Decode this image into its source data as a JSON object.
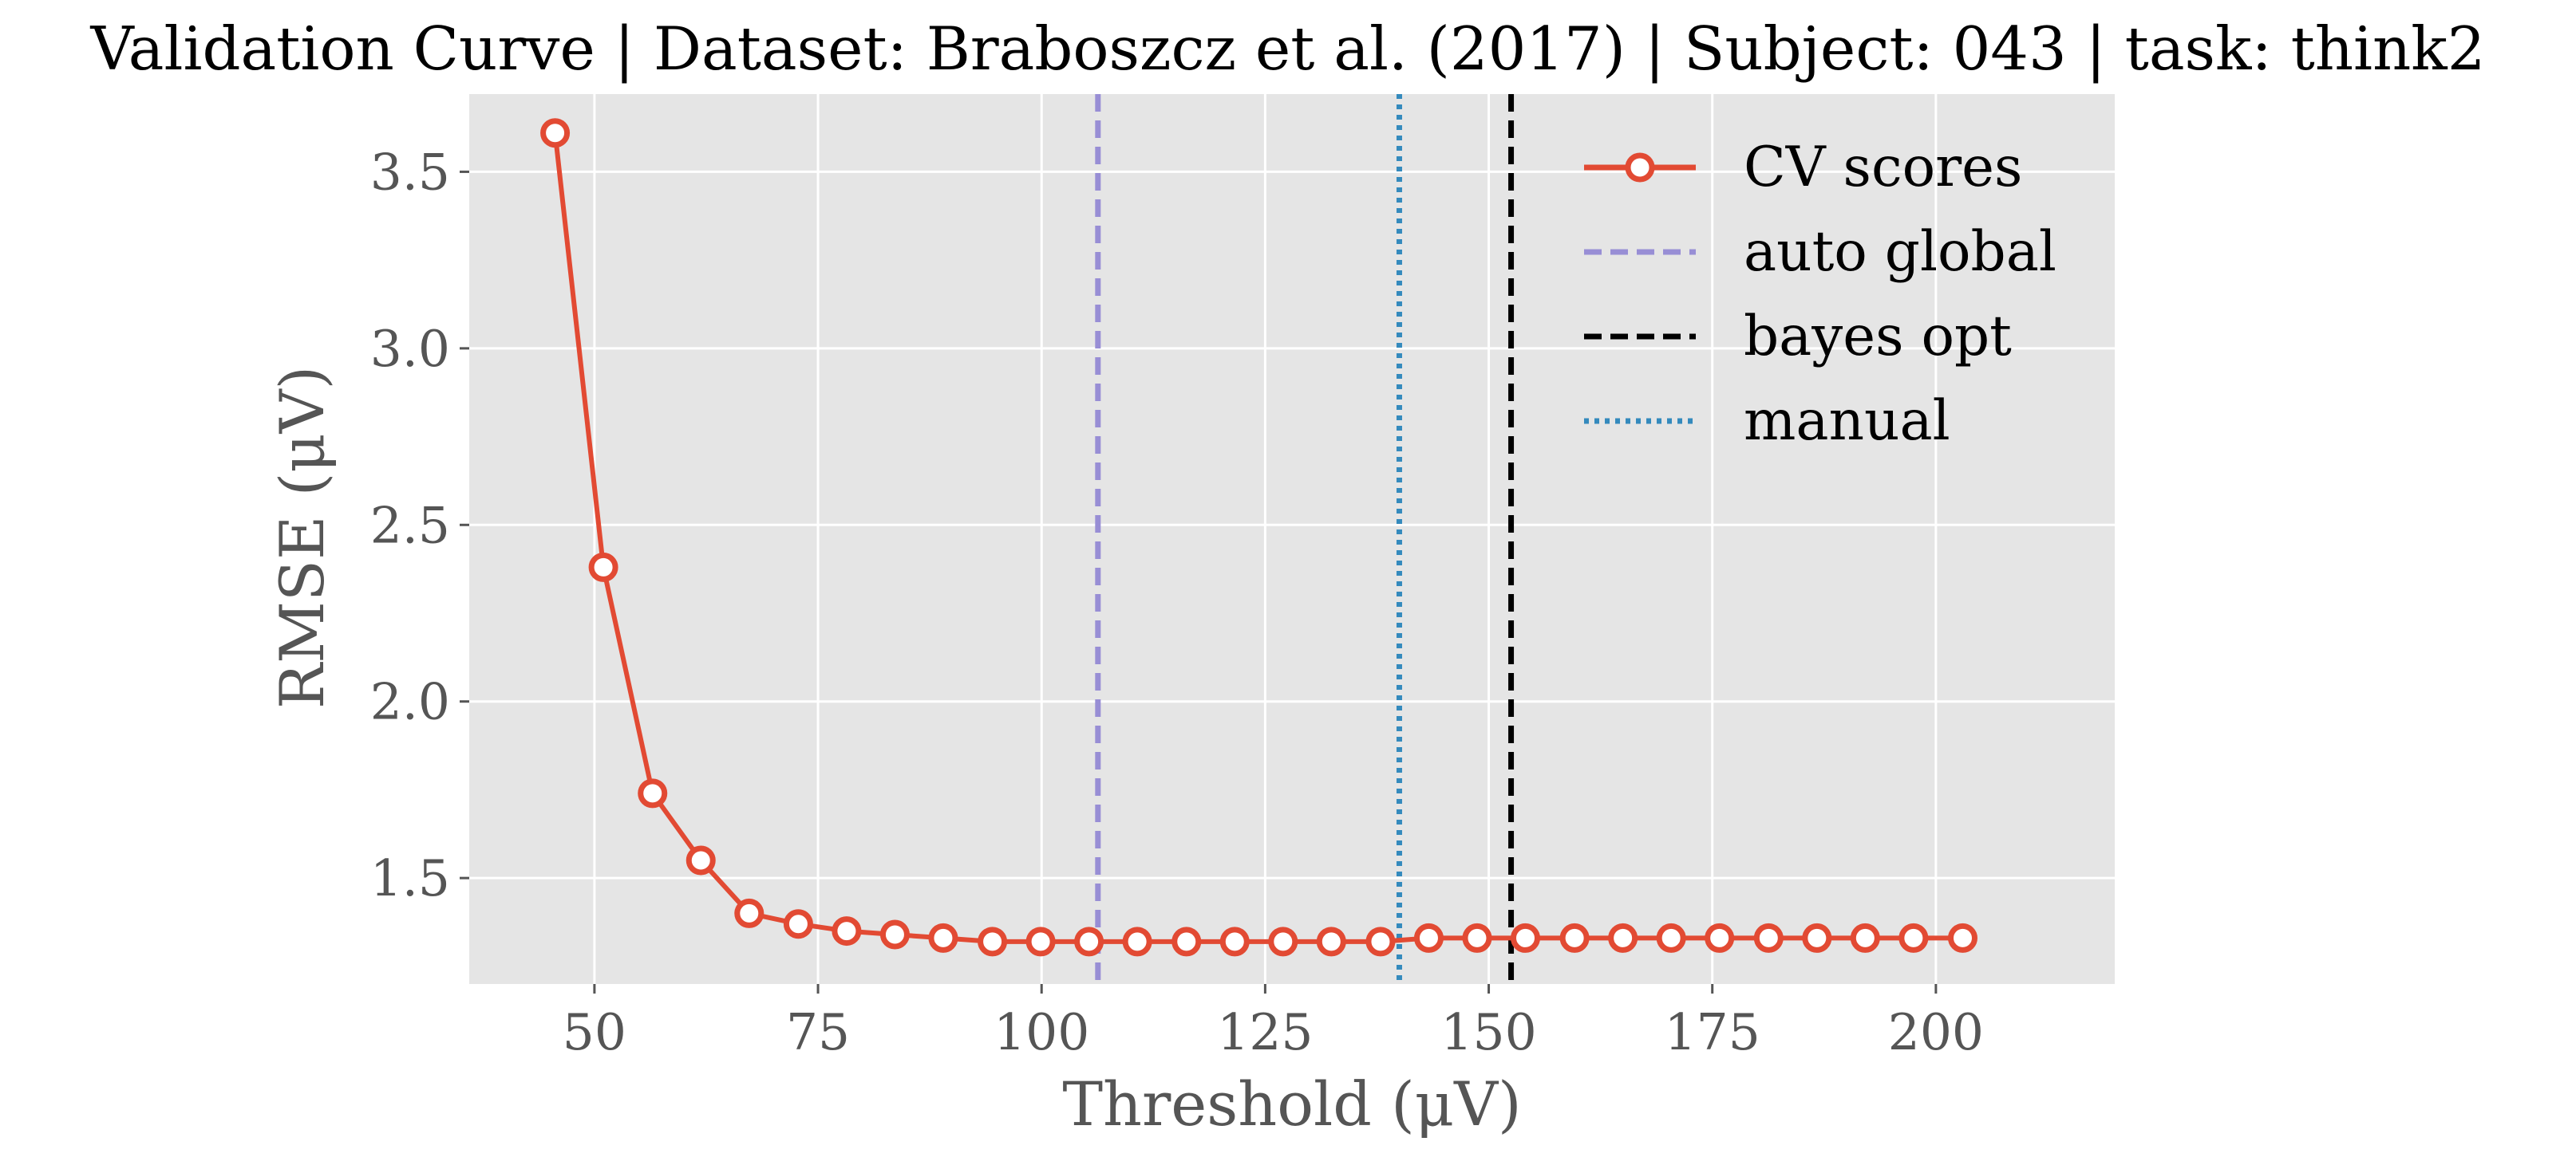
{
  "chart_data": {
    "type": "line",
    "title": "Validation Curve | Dataset: Braboszcz et al. (2017) | Subject: 043 | task: think2",
    "xlabel": "Threshold (μV)",
    "ylabel": "RMSE (μV)",
    "xlim": [
      36,
      220
    ],
    "ylim": [
      1.2,
      3.72
    ],
    "grid": true,
    "legend_placement": "top-right",
    "xticks": [
      50,
      75,
      100,
      125,
      150,
      175,
      200
    ],
    "yticks": [
      1.5,
      2.0,
      2.5,
      3.0,
      3.5
    ],
    "xtick_labels": [
      "50",
      "75",
      "100",
      "125",
      "150",
      "175",
      "200"
    ],
    "ytick_labels": [
      "1.5",
      "2.0",
      "2.5",
      "3.0",
      "3.5"
    ],
    "series": [
      {
        "name": "CV scores",
        "color": "#E24A33",
        "x": [
          45.6,
          51.0,
          56.5,
          61.9,
          67.3,
          72.8,
          78.2,
          83.6,
          89.0,
          94.5,
          99.9,
          105.3,
          110.7,
          116.2,
          121.6,
          127.0,
          132.4,
          137.9,
          143.3,
          148.7,
          154.1,
          159.6,
          165.0,
          170.4,
          175.8,
          181.3,
          186.7,
          192.1,
          197.5,
          203.0
        ],
        "y": [
          3.61,
          2.38,
          1.74,
          1.55,
          1.4,
          1.37,
          1.35,
          1.34,
          1.33,
          1.32,
          1.32,
          1.32,
          1.32,
          1.32,
          1.32,
          1.32,
          1.32,
          1.32,
          1.33,
          1.33,
          1.33,
          1.33,
          1.33,
          1.33,
          1.33,
          1.33,
          1.33,
          1.33,
          1.33,
          1.33
        ]
      }
    ],
    "vlines": [
      {
        "name": "auto global",
        "x": 106.3,
        "color": "#988ED5",
        "style": "dashed"
      },
      {
        "name": "manual",
        "x": 140.0,
        "color": "#348ABD",
        "style": "dotted"
      },
      {
        "name": "bayes opt",
        "x": 152.5,
        "color": "#000000",
        "style": "dashed"
      }
    ],
    "legend": [
      {
        "label": "CV scores",
        "color": "#E24A33",
        "style": "line-marker"
      },
      {
        "label": "auto global",
        "color": "#988ED5",
        "style": "dashed"
      },
      {
        "label": "bayes opt",
        "color": "#000000",
        "style": "dashed"
      },
      {
        "label": "manual",
        "color": "#348ABD",
        "style": "dotted"
      }
    ]
  }
}
